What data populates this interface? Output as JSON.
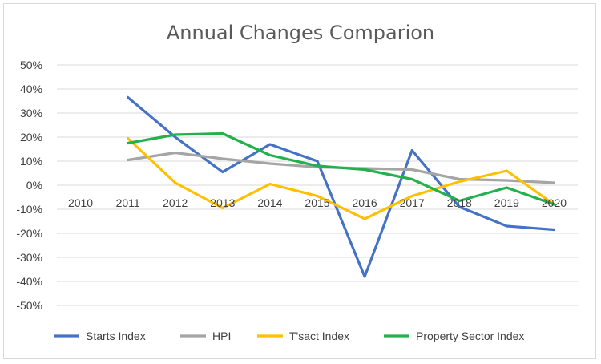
{
  "chart_data": {
    "type": "line",
    "title": "Annual Changes Comparion",
    "xlabel": "",
    "ylabel": "",
    "categories": [
      "2010",
      "2011",
      "2012",
      "2013",
      "2014",
      "2015",
      "2016",
      "2017",
      "2018",
      "2019",
      "2020"
    ],
    "ylim": [
      -50,
      50
    ],
    "yticks": [
      "50%",
      "40%",
      "30%",
      "20%",
      "10%",
      "0%",
      "-10%",
      "-20%",
      "-30%",
      "-40%",
      "-50%"
    ],
    "ytick_values": [
      50,
      40,
      30,
      20,
      10,
      0,
      -10,
      -20,
      -30,
      -40,
      -50
    ],
    "grid": true,
    "legend_position": "bottom",
    "series": [
      {
        "name": "Starts Index",
        "color": "#4472c4",
        "values": [
          null,
          36.5,
          20,
          5.5,
          17,
          10,
          -38,
          14.5,
          -9,
          -17,
          -18.5
        ]
      },
      {
        "name": "HPI",
        "color": "#a5a5a5",
        "values": [
          null,
          10.5,
          13.5,
          11,
          9,
          7.5,
          7,
          6.5,
          2.5,
          2,
          1
        ]
      },
      {
        "name": "T'sact Index",
        "color": "#ffc000",
        "values": [
          null,
          19.5,
          1,
          -9.5,
          0.5,
          -4.5,
          -14,
          -4.5,
          1.5,
          6,
          -8
        ]
      },
      {
        "name": "Property Sector Index",
        "color": "#22b14c",
        "values": [
          null,
          17.5,
          21,
          21.5,
          12.5,
          8,
          6.5,
          2.5,
          -6.5,
          -1,
          -8
        ]
      }
    ]
  }
}
